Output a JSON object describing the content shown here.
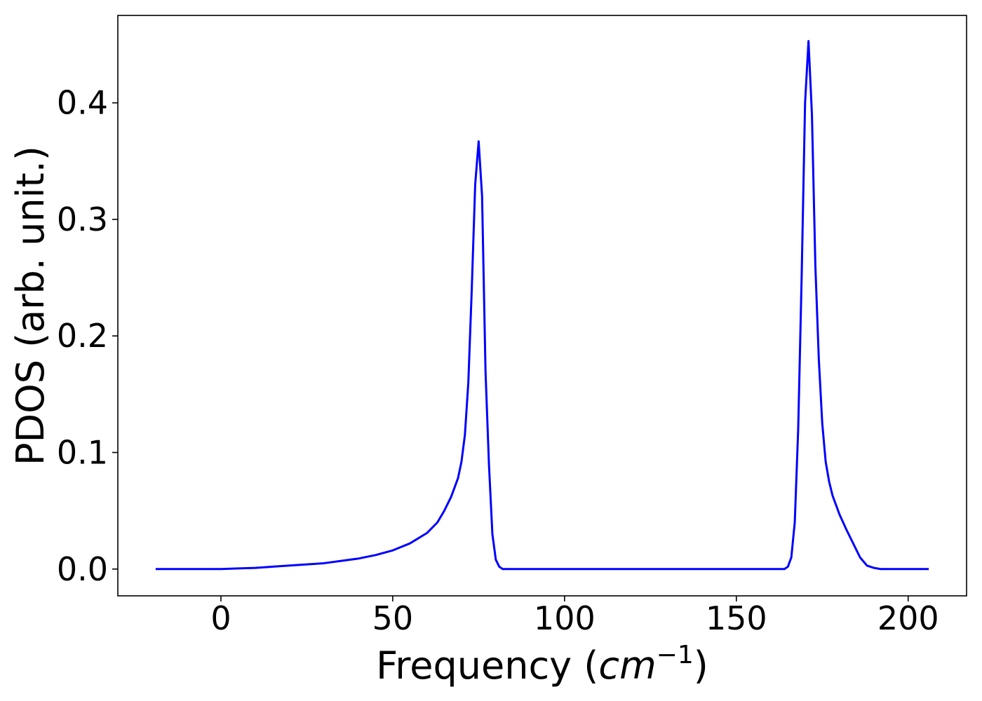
{
  "chart_data": {
    "type": "line",
    "xlabel": "Frequency ",
    "xlabel_unit_base": "cm",
    "xlabel_unit_exp": "−1",
    "ylabel": "PDOS (arb. unit.)",
    "xlim": [
      -30,
      217
    ],
    "ylim": [
      -0.023,
      0.475
    ],
    "xticks": [
      0,
      50,
      100,
      150,
      200
    ],
    "xtick_labels": [
      "0",
      "50",
      "100",
      "150",
      "200"
    ],
    "yticks": [
      0.0,
      0.1,
      0.2,
      0.3,
      0.4
    ],
    "ytick_labels": [
      "0.0",
      "0.1",
      "0.2",
      "0.3",
      "0.4"
    ],
    "grid": false,
    "series": [
      {
        "color": "#0000ff",
        "x": [
          -19,
          -10,
          0,
          5,
          10,
          15,
          20,
          25,
          30,
          35,
          40,
          45,
          50,
          55,
          60,
          63,
          65,
          67,
          69,
          70,
          71,
          72,
          73,
          74,
          75,
          76,
          77,
          78,
          79,
          80,
          81,
          82,
          85,
          100,
          120,
          140,
          160,
          164,
          165,
          166,
          167,
          168,
          169,
          170,
          171,
          172,
          173,
          174,
          175,
          176,
          177,
          178,
          179,
          180,
          182,
          184,
          186,
          188,
          190,
          192,
          195,
          200,
          206
        ],
        "y": [
          0.0,
          0.0,
          0.0,
          0.0005,
          0.001,
          0.002,
          0.003,
          0.004,
          0.005,
          0.007,
          0.009,
          0.012,
          0.016,
          0.022,
          0.031,
          0.04,
          0.05,
          0.062,
          0.078,
          0.092,
          0.115,
          0.16,
          0.24,
          0.33,
          0.367,
          0.32,
          0.17,
          0.09,
          0.03,
          0.008,
          0.002,
          0.0,
          0.0,
          0.0,
          0.0,
          0.0,
          0.0,
          0.0,
          0.002,
          0.01,
          0.04,
          0.12,
          0.25,
          0.4,
          0.453,
          0.39,
          0.26,
          0.18,
          0.125,
          0.092,
          0.075,
          0.063,
          0.055,
          0.047,
          0.034,
          0.022,
          0.01,
          0.003,
          0.001,
          0.0,
          0.0,
          0.0,
          0.0
        ]
      }
    ]
  }
}
